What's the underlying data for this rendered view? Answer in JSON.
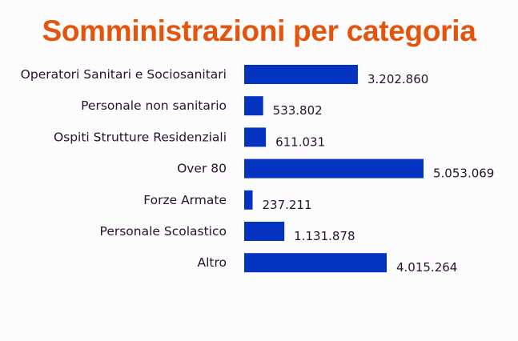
{
  "chart_data": {
    "type": "bar",
    "orientation": "horizontal",
    "title": "Somministrazioni per categoria",
    "categories": [
      "Operatori Sanitari e Sociosanitari",
      "Personale non sanitario",
      "Ospiti Strutture Residenziali",
      "Over 80",
      "Forze Armate",
      "Personale Scolastico",
      "Altro"
    ],
    "values": [
      3202860,
      533802,
      611031,
      5053069,
      237211,
      1131878,
      4015264
    ],
    "value_labels": [
      "3.202.860",
      "533.802",
      "611.031",
      "5.053.069",
      "237.211",
      "1.131.878",
      "4.015.264"
    ],
    "xlabel": "",
    "ylabel": "",
    "grid": false,
    "bar_color": "#0433c2",
    "title_color": "#e5540c"
  }
}
